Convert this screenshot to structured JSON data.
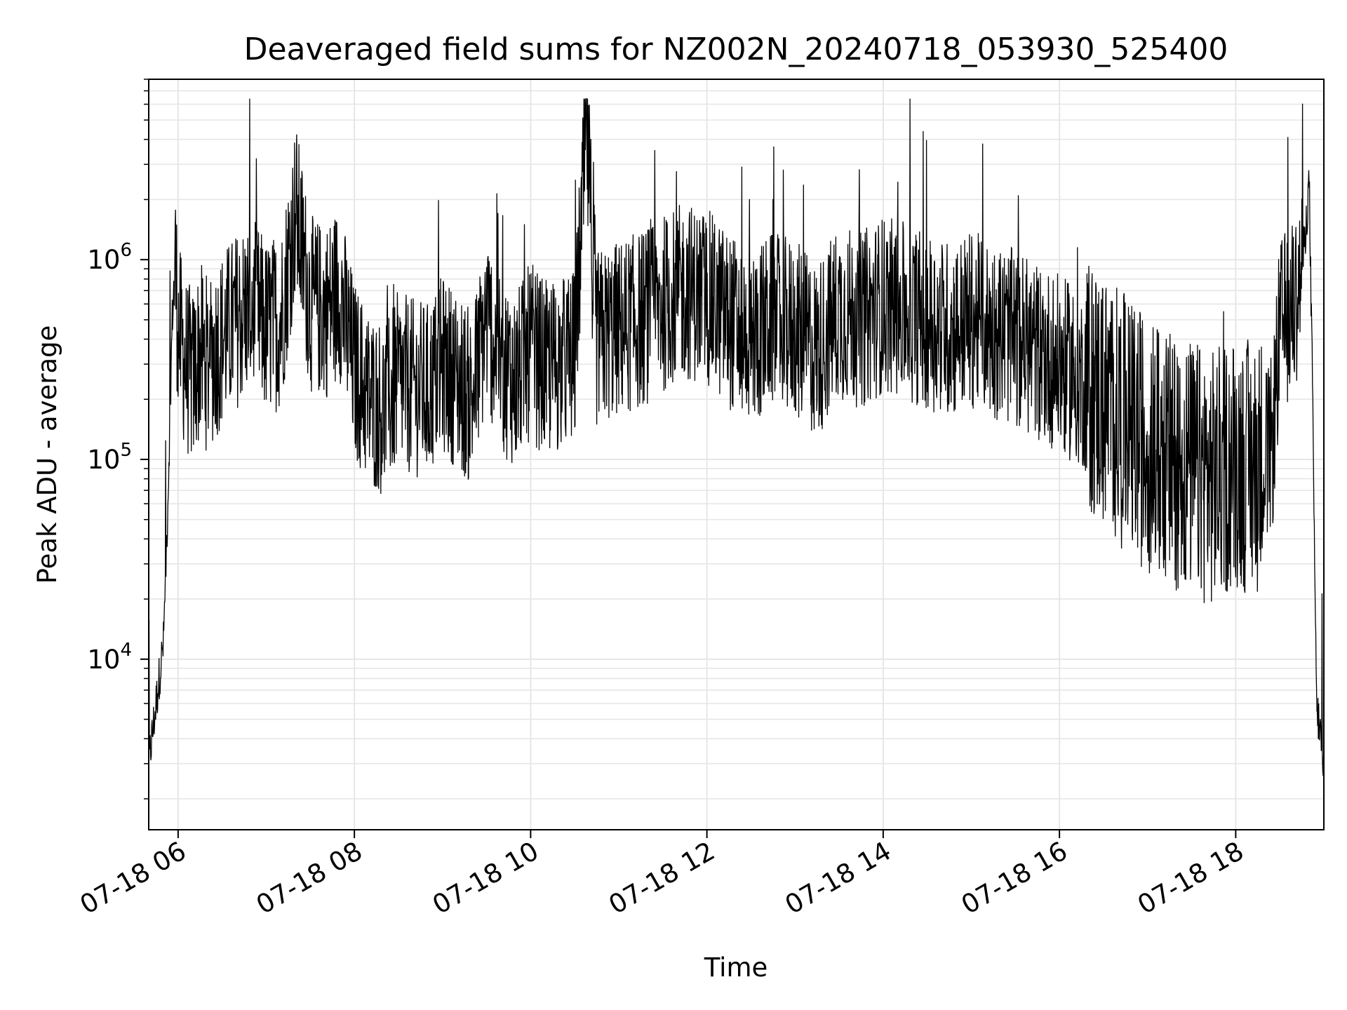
{
  "chart_data": {
    "type": "line",
    "title": "Deaveraged field sums for NZ002N_20240718_053930_525400",
    "xlabel": "Time",
    "ylabel": "Peak ADU - average",
    "x_ticks": [
      "07-18 06",
      "07-18 08",
      "07-18 10",
      "07-18 12",
      "07-18 14",
      "07-18 16",
      "07-18 18"
    ],
    "y_ticks": [
      {
        "base": "10",
        "exp": "4",
        "value": 10000
      },
      {
        "base": "10",
        "exp": "5",
        "value": 100000
      },
      {
        "base": "10",
        "exp": "6",
        "value": 1000000
      }
    ],
    "y_scale": "log",
    "xlim": [
      "2024-07-18 05:40",
      "2024-07-18 19:00"
    ],
    "ylim": [
      1400,
      8000000
    ],
    "grid": true,
    "line_color": "#000000",
    "grid_color": "#e6e6e6",
    "series": [
      {
        "x": [
          "2024-07-18 05:40",
          "2024-07-18 05:45",
          "2024-07-18 05:50",
          "2024-07-18 05:53",
          "2024-07-18 05:56",
          "2024-07-18 05:58",
          "2024-07-18 06:00",
          "2024-07-18 06:05",
          "2024-07-18 06:10",
          "2024-07-18 06:15",
          "2024-07-18 06:20",
          "2024-07-18 06:30",
          "2024-07-18 06:40",
          "2024-07-18 06:50",
          "2024-07-18 07:00",
          "2024-07-18 07:10",
          "2024-07-18 07:20",
          "2024-07-18 07:30",
          "2024-07-18 07:40",
          "2024-07-18 07:50",
          "2024-07-18 08:00",
          "2024-07-18 08:10",
          "2024-07-18 08:20",
          "2024-07-18 08:30",
          "2024-07-18 08:40",
          "2024-07-18 08:50",
          "2024-07-18 09:00",
          "2024-07-18 09:10",
          "2024-07-18 09:20",
          "2024-07-18 09:30",
          "2024-07-18 09:40",
          "2024-07-18 09:50",
          "2024-07-18 10:00",
          "2024-07-18 10:10",
          "2024-07-18 10:20",
          "2024-07-18 10:30",
          "2024-07-18 10:38",
          "2024-07-18 10:45",
          "2024-07-18 11:00",
          "2024-07-18 11:15",
          "2024-07-18 11:30",
          "2024-07-18 11:45",
          "2024-07-18 12:00",
          "2024-07-18 12:15",
          "2024-07-18 12:30",
          "2024-07-18 12:45",
          "2024-07-18 13:00",
          "2024-07-18 13:15",
          "2024-07-18 13:30",
          "2024-07-18 13:45",
          "2024-07-18 14:00",
          "2024-07-18 14:15",
          "2024-07-18 14:30",
          "2024-07-18 14:45",
          "2024-07-18 15:00",
          "2024-07-18 15:15",
          "2024-07-18 15:30",
          "2024-07-18 15:45",
          "2024-07-18 16:00",
          "2024-07-18 16:15",
          "2024-07-18 16:30",
          "2024-07-18 16:45",
          "2024-07-18 17:00",
          "2024-07-18 17:15",
          "2024-07-18 17:30",
          "2024-07-18 17:45",
          "2024-07-18 18:00",
          "2024-07-18 18:10",
          "2024-07-18 18:20",
          "2024-07-18 18:25",
          "2024-07-18 18:30",
          "2024-07-18 18:40",
          "2024-07-18 18:45",
          "2024-07-18 18:48",
          "2024-07-18 18:50",
          "2024-07-18 18:52",
          "2024-07-18 18:55",
          "2024-07-18 19:00"
        ],
        "y": [
          3000,
          6000,
          12000,
          60000,
          500000,
          1000000,
          450000,
          300000,
          250000,
          350000,
          300000,
          400000,
          500000,
          600000,
          450000,
          500000,
          1800000,
          600000,
          550000,
          700000,
          280000,
          200000,
          180000,
          250000,
          230000,
          220000,
          300000,
          250000,
          200000,
          500000,
          300000,
          250000,
          350000,
          280000,
          300000,
          320000,
          4500000,
          400000,
          450000,
          500000,
          600000,
          700000,
          650000,
          500000,
          400000,
          500000,
          450000,
          350000,
          550000,
          500000,
          600000,
          550000,
          500000,
          450000,
          500000,
          450000,
          400000,
          350000,
          300000,
          250000,
          200000,
          150000,
          120000,
          100000,
          90000,
          80000,
          100000,
          90000,
          100000,
          120000,
          450000,
          600000,
          900000,
          1500000,
          2500000,
          300000,
          6000,
          3000
        ]
      }
    ]
  }
}
